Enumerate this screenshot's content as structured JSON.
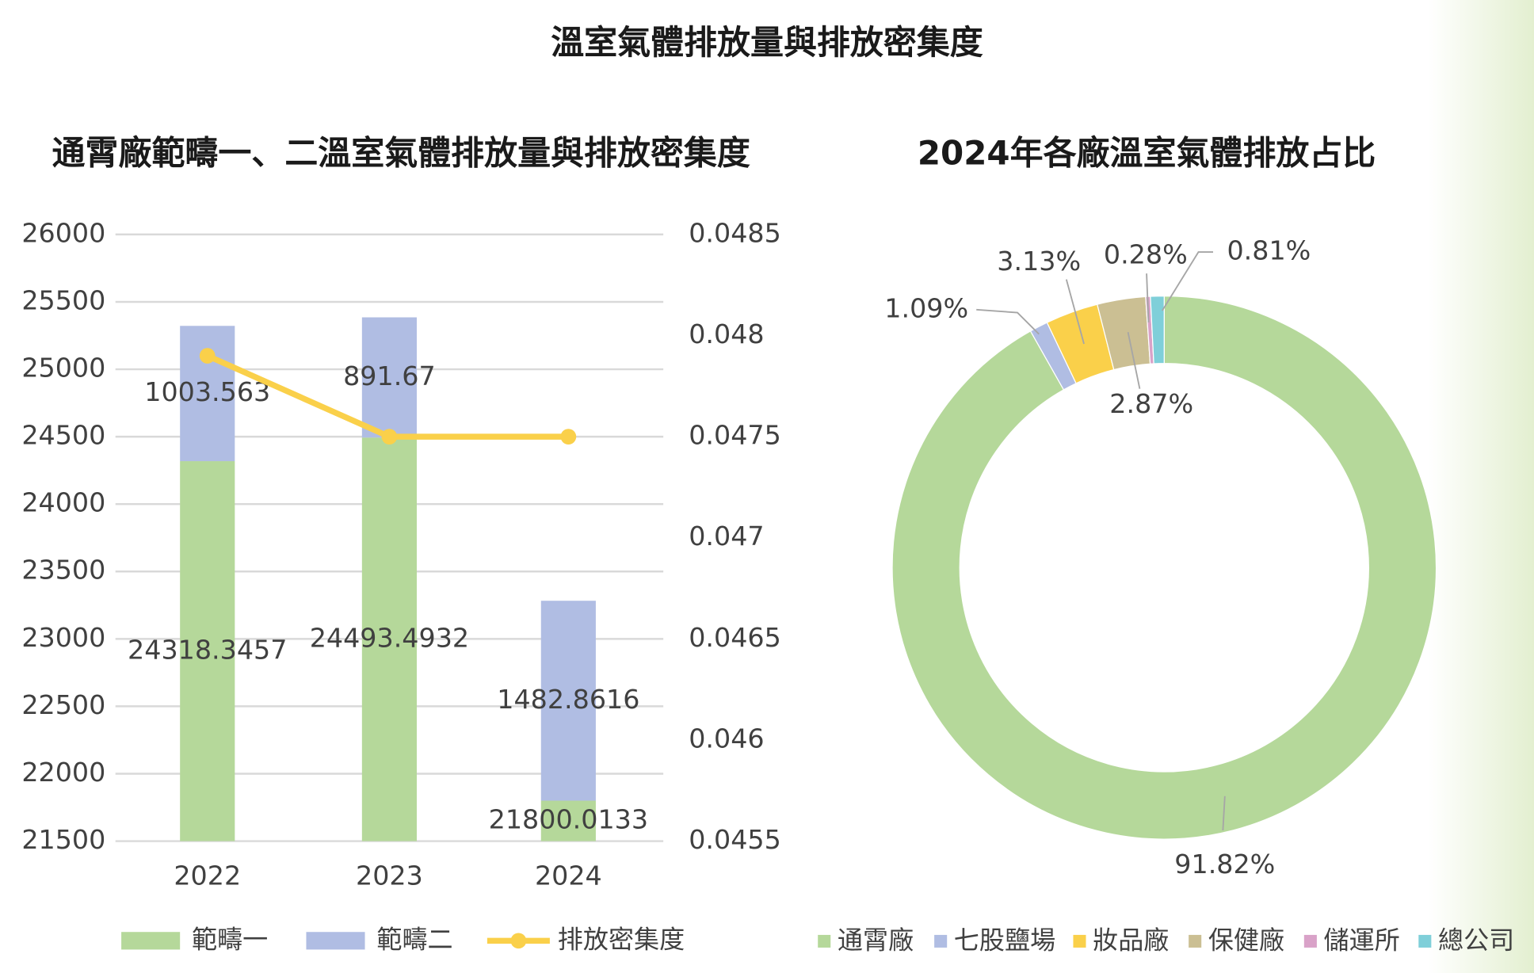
{
  "title": "溫室氣體排放量與排放密集度",
  "chart_data": [
    {
      "type": "bar",
      "title": "通霄廠範疇一、二溫室氣體排放量與排放密集度",
      "categories": [
        "2022",
        "2023",
        "2024"
      ],
      "stacked": true,
      "grid": true,
      "ylim": [
        21500,
        26000
      ],
      "yticks": [
        21500,
        22000,
        22500,
        23000,
        23500,
        24000,
        24500,
        25000,
        25500,
        26000
      ],
      "y2lim": [
        0.0455,
        0.0485
      ],
      "y2ticks": [
        0.0455,
        0.046,
        0.0465,
        0.047,
        0.0475,
        0.048,
        0.0485
      ],
      "series": [
        {
          "name": "範疇一",
          "color": "#b5d89a",
          "values": [
            24318.3457,
            24493.4932,
            21800.0133
          ]
        },
        {
          "name": "範疇二",
          "color": "#b0bde3",
          "values": [
            1003.563,
            891.67,
            1482.8616
          ]
        },
        {
          "name": "排放密集度",
          "color": "#fad04a",
          "type": "line",
          "axis": "y2",
          "values": [
            0.0479,
            0.0475,
            0.0475
          ]
        }
      ]
    },
    {
      "type": "pie",
      "title": "2024年各廠溫室氣體排放占比",
      "categories": [
        "通霄廠",
        "七股鹽場",
        "妝品廠",
        "保健廠",
        "儲運所",
        "總公司"
      ],
      "values": [
        91.82,
        1.09,
        3.13,
        2.87,
        0.28,
        0.81
      ],
      "value_labels": [
        "91.82%",
        "1.09%",
        "3.13%",
        "2.87%",
        "0.28%",
        "0.81%"
      ],
      "colors": [
        "#b5d89a",
        "#b0bde3",
        "#fad04a",
        "#cbbf93",
        "#d9a2c8",
        "#7fcfd9"
      ]
    }
  ]
}
